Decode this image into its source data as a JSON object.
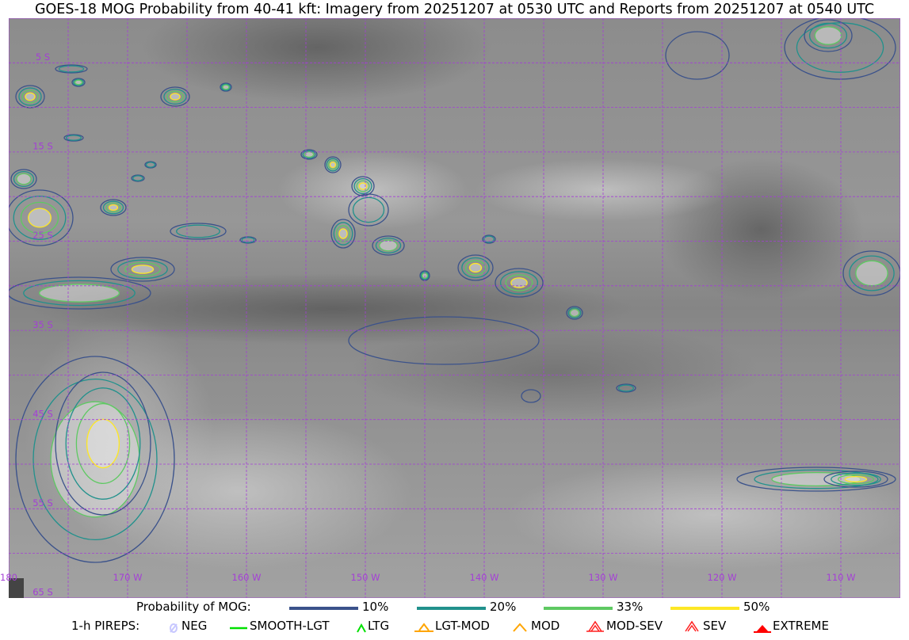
{
  "title": "GOES-18 MOG Probability from 40-41 kft: Imagery from 20251207 at 0530 UTC and Reports from 20251207 at 0540 UTC",
  "map": {
    "longitude_labels": [
      "180",
      "170 W",
      "160 W",
      "150 W",
      "140 W",
      "130 W",
      "120 W",
      "110 W"
    ],
    "latitude_labels": [
      "5 S",
      "15 S",
      "25 S",
      "35 S",
      "45 S",
      "55 S",
      "65 S"
    ],
    "grid_color": "#a43fd6",
    "imagery": "grayscale satellite"
  },
  "legend": {
    "probability_label": "Probability of MOG:",
    "probability_levels": [
      {
        "label": "10%",
        "color": "#3b528b"
      },
      {
        "label": "20%",
        "color": "#21918c"
      },
      {
        "label": "33%",
        "color": "#5ec962"
      },
      {
        "label": "50%",
        "color": "#fde725"
      }
    ],
    "pireps_label": "1-h PIREPS:",
    "pireps": [
      {
        "label": "NEG",
        "icon": "neg-icon",
        "color": "#c8c8ff"
      },
      {
        "label": "SMOOTH-LGT",
        "icon": "smooth-lgt-icon",
        "color": "#00e000"
      },
      {
        "label": "LTG",
        "icon": "ltg-icon",
        "color": "#00e000"
      },
      {
        "label": "LGT-MOD",
        "icon": "lgt-mod-icon",
        "color": "#ffa500"
      },
      {
        "label": "MOD",
        "icon": "mod-icon",
        "color": "#ffa500"
      },
      {
        "label": "MOD-SEV",
        "icon": "mod-sev-icon",
        "color": "#ff2020"
      },
      {
        "label": "SEV",
        "icon": "sev-icon",
        "color": "#ff2020"
      },
      {
        "label": "EXTREME",
        "icon": "extreme-icon",
        "color": "#ff0000"
      }
    ]
  }
}
